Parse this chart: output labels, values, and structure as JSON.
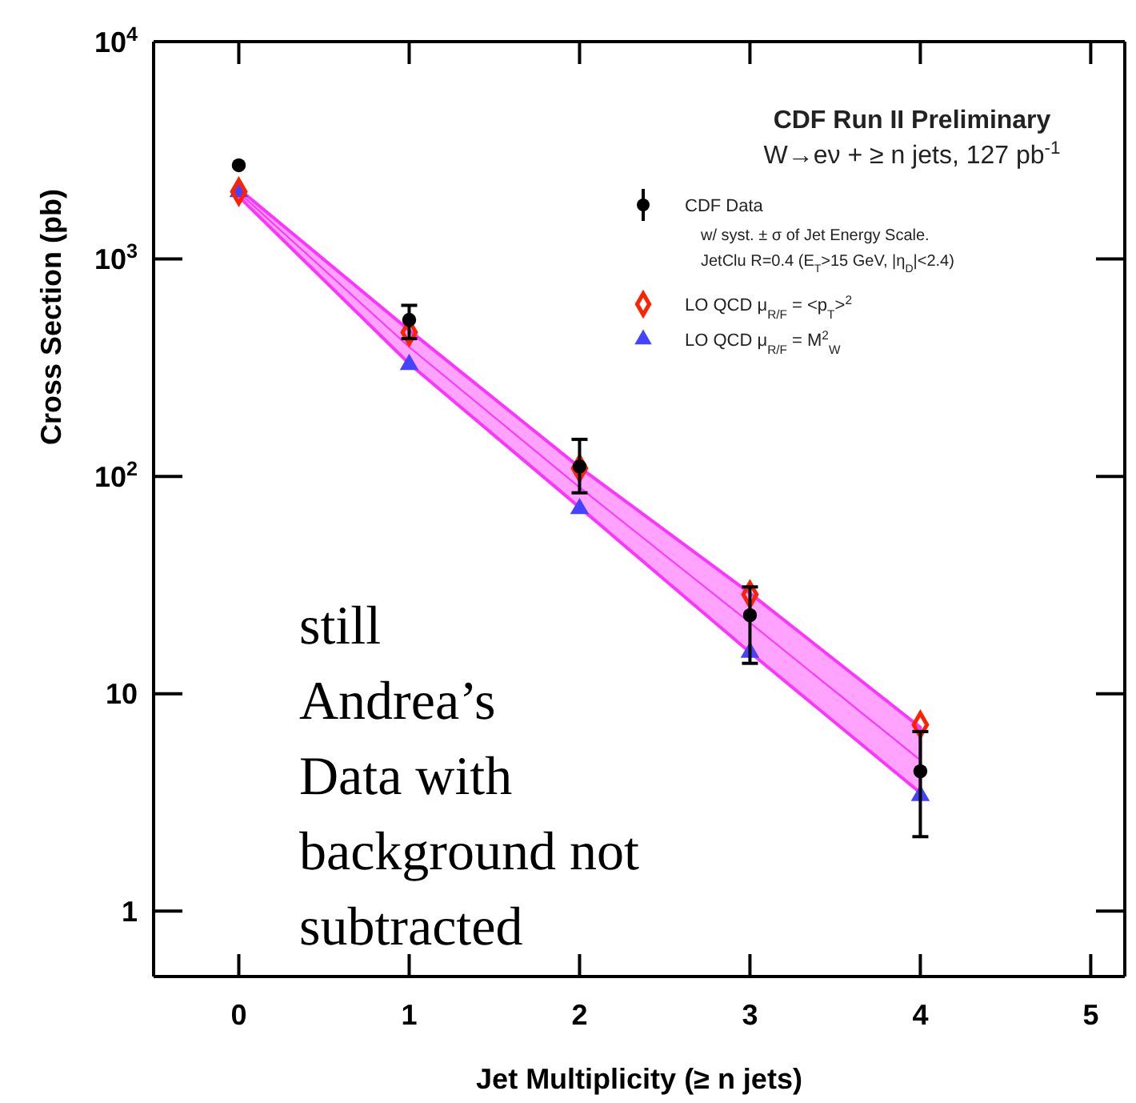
{
  "chart_data": {
    "type": "scatter",
    "title": "CDF Run II Preliminary",
    "subtitle": "W→eν + ≥ n jets, 127 pb$^{-1}$",
    "xlabel": "Jet Multiplicity (≥ n jets)",
    "ylabel": "Cross Section (pb)",
    "x": [
      0,
      1,
      2,
      3,
      4
    ],
    "xlim": [
      -0.5,
      5.2
    ],
    "xticks": [
      0,
      1,
      2,
      3,
      4,
      5
    ],
    "ylim": [
      0.5,
      10000
    ],
    "yticks": [
      1,
      10,
      {
        "value": 100,
        "label": "10$^{2}$"
      },
      {
        "value": 1000,
        "label": "10$^{3}$"
      },
      {
        "value": 10000,
        "label": "10$^{4}$"
      }
    ],
    "log": true,
    "legend": "top right",
    "series": [
      {
        "type": "line",
        "color": "#ff33ff",
        "values": [
          2024,
          394,
          89,
          21.2,
          4.95
        ],
        "lower": [
          1936,
          330,
          72,
          15.5,
          3.5
        ],
        "upper": [
          2100,
          470,
          110,
          29,
          7
        ]
      },
      {
        "name": "LO QCD μ$_{R/F}$ = M$^{2}$$_{W}$",
        "color": "#4444ff",
        "marker": "triangle",
        "values": [
          2040,
          327,
          71,
          15.5,
          3.4
        ]
      },
      {
        "name": "LO QCD μ$_{R/F}$ = <p$_{T}$>$^{2}$",
        "color": "#ff2200",
        "marker": "diamond",
        "values": [
          2040,
          460,
          109,
          28.6,
          7.2
        ]
      },
      {
        "name": "CDF Data",
        "color": "#000000",
        "marker": "circle",
        "values": [
          2700,
          525,
          111,
          23,
          4.4
        ],
        "errors": [
          null,
          [
            430,
            612
          ],
          [
            84,
            148
          ],
          [
            13.8,
            31
          ],
          [
            2.2,
            6.7
          ]
        ]
      }
    ],
    "annotations": [
      "w/ syst. ± σ of Jet Energy Scale.",
      "JetClu R=0.4 (E$_{T}$>15 GeV, |η$_{D}$|<2.4)",
      "still Andrea’s Data with background not subtracted"
    ]
  }
}
